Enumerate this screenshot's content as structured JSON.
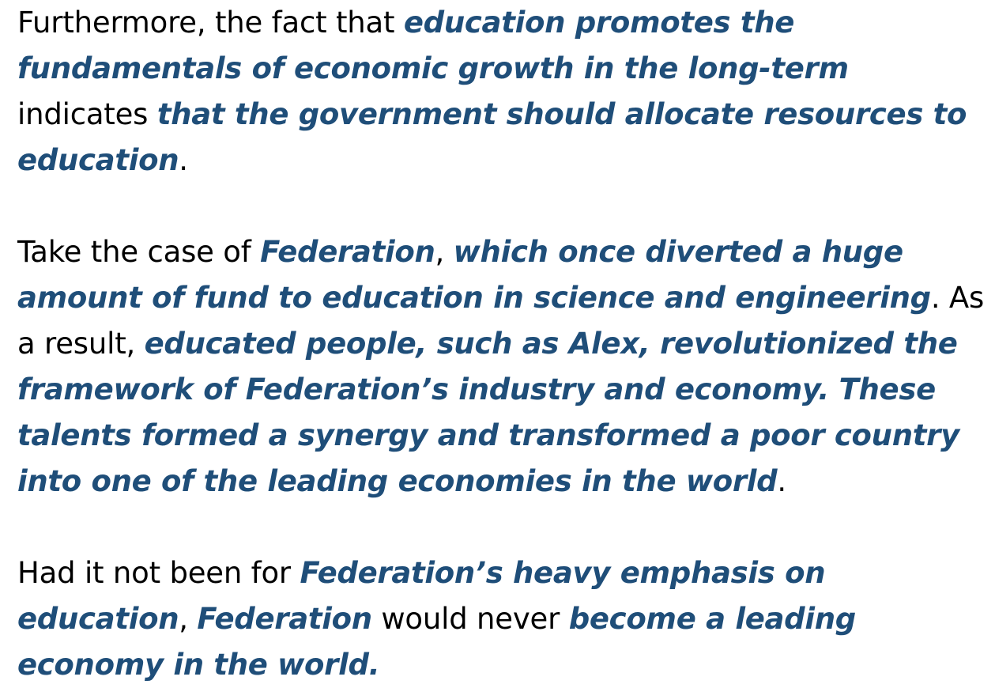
{
  "paragraphs": [
    {
      "segments": [
        {
          "text": "Furthermore, the fact that ",
          "emphasis": false
        },
        {
          "text": "education promotes the fundamentals of economic growth in the long-term",
          "emphasis": true
        },
        {
          "text": " indicates ",
          "emphasis": false
        },
        {
          "text": "that the government should allocate resources to education",
          "emphasis": true
        },
        {
          "text": ".",
          "emphasis": false
        }
      ]
    },
    {
      "segments": [
        {
          "text": "Take the case of ",
          "emphasis": false
        },
        {
          "text": "Federation",
          "emphasis": true
        },
        {
          "text": ", ",
          "emphasis": false
        },
        {
          "text": "which once diverted a huge amount of fund to education in science and engineering",
          "emphasis": true
        },
        {
          "text": ". As a result, ",
          "emphasis": false
        },
        {
          "text": "educated people, such as Alex, revolutionized the framework of Federation’s industry and economy. These talents formed a synergy and transformed a poor country into one of the leading economies in the world",
          "emphasis": true
        },
        {
          "text": ".",
          "emphasis": false
        }
      ]
    },
    {
      "segments": [
        {
          "text": "Had it not been for ",
          "emphasis": false
        },
        {
          "text": "Federation’s heavy emphasis on education",
          "emphasis": true
        },
        {
          "text": ", ",
          "emphasis": false
        },
        {
          "text": "Federation",
          "emphasis": true
        },
        {
          "text": " would never ",
          "emphasis": false
        },
        {
          "text": "become a leading economy in the world.",
          "emphasis": true
        }
      ]
    }
  ],
  "colors": {
    "emphasis_text": "#1f4e79",
    "body_text": "#000000",
    "background": "#ffffff"
  }
}
